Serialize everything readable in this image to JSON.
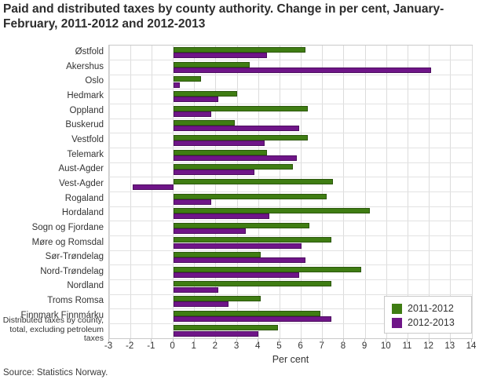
{
  "title": "Paid and distributed taxes by county authority. Change in per cent, January-February, 2011-2012 and 2012-2013",
  "source": "Source: Statistics Norway.",
  "colors": {
    "series1": "#3f7d13",
    "series2": "#6f1588",
    "grid": "#dcdcdc",
    "plot_border": "#c9c9c9",
    "text": "#333333"
  },
  "chart_data": {
    "type": "bar",
    "orientation": "horizontal",
    "title": "Paid and distributed taxes by county authority. Change in per cent, January-February, 2011-2012 and 2012-2013",
    "xlabel": "Per cent",
    "ylabel": "",
    "xlim": [
      -3,
      14
    ],
    "xticks": [
      -3,
      -2,
      -1,
      0,
      1,
      2,
      3,
      4,
      5,
      6,
      7,
      8,
      9,
      10,
      11,
      12,
      13,
      14
    ],
    "grid": true,
    "legend_position": "bottom-right",
    "categories": [
      "Østfold",
      "Akershus",
      "Oslo",
      "Hedmark",
      "Oppland",
      "Buskerud",
      "Vestfold",
      "Telemark",
      "Aust-Agder",
      "Vest-Agder",
      "Rogaland",
      "Hordaland",
      "Sogn og Fjordane",
      "Møre og Romsdal",
      "Sør-Trøndelag",
      "Nord-Trøndelag",
      "Nordland",
      "Troms Romsa",
      "Finnmark Finnmárku",
      "Distributed taxes by county, total, excluding petroleum taxes"
    ],
    "series": [
      {
        "name": "2011-2012",
        "color": "#3f7d13",
        "values": [
          6.2,
          3.6,
          1.3,
          3.0,
          6.3,
          2.9,
          6.3,
          4.4,
          5.6,
          7.5,
          7.2,
          9.2,
          6.4,
          7.4,
          4.1,
          8.8,
          7.4,
          4.1,
          6.9,
          4.9
        ]
      },
      {
        "name": "2012-2013",
        "color": "#6f1588",
        "values": [
          4.4,
          12.1,
          0.3,
          2.1,
          1.8,
          5.9,
          4.3,
          5.8,
          3.8,
          -1.9,
          1.8,
          4.5,
          3.4,
          6.0,
          6.2,
          5.9,
          2.1,
          2.6,
          7.4,
          4.0
        ]
      }
    ]
  }
}
